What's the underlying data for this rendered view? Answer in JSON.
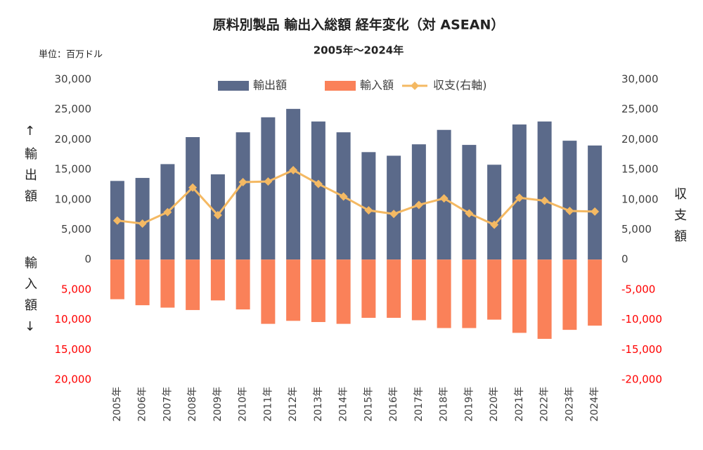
{
  "chart_data": {
    "type": "bar_line",
    "title": "原料別製品 輸出入総額 経年変化（対 ASEAN）",
    "subtitle": "2005年～2024年",
    "unit_label": "単位：百万ドル",
    "y_label_top": "↑輸出額",
    "y_label_bottom": "輸入額↓",
    "y2_label": "収支額",
    "categories": [
      "2005年",
      "2006年",
      "2007年",
      "2008年",
      "2009年",
      "2010年",
      "2011年",
      "2012年",
      "2013年",
      "2014年",
      "2015年",
      "2016年",
      "2017年",
      "2018年",
      "2019年",
      "2020年",
      "2021年",
      "2022年",
      "2023年",
      "2024年"
    ],
    "series": [
      {
        "name": "輸出額",
        "color": "#5b6a8a",
        "values": [
          13100,
          13600,
          15900,
          20400,
          14200,
          21200,
          23700,
          25100,
          23000,
          21200,
          17900,
          17300,
          19200,
          21600,
          19100,
          15800,
          22500,
          23000,
          19800,
          19000
        ]
      },
      {
        "name": "輸入額",
        "color": "#fa8159",
        "values": [
          -6600,
          -7600,
          -8000,
          -8400,
          -6800,
          -8300,
          -10700,
          -10200,
          -10400,
          -10700,
          -9700,
          -9700,
          -10100,
          -11400,
          -11400,
          -10000,
          -12200,
          -13200,
          -11700,
          -11000
        ]
      },
      {
        "name": "収支(右軸)",
        "color": "#f4b963",
        "axis": "y2",
        "values": [
          6500,
          6000,
          7900,
          12000,
          7400,
          12900,
          13000,
          14900,
          12600,
          10500,
          8200,
          7600,
          9100,
          10200,
          7700,
          5800,
          10300,
          9800,
          8100,
          8000
        ]
      }
    ],
    "ylim": [
      -20000,
      30000
    ],
    "yticks": [
      {
        "value": 30000,
        "label": "30,000"
      },
      {
        "value": 25000,
        "label": "25,000"
      },
      {
        "value": 20000,
        "label": "20,000"
      },
      {
        "value": 15000,
        "label": "15,000"
      },
      {
        "value": 10000,
        "label": "10,000"
      },
      {
        "value": 5000,
        "label": "5,000"
      },
      0,
      {
        "value": -5000,
        "label": "5,000"
      },
      {
        "value": -10000,
        "label": "10,000"
      },
      {
        "value": -15000,
        "label": "15,000"
      },
      {
        "value": -20000,
        "label": "20,000"
      }
    ],
    "y2lim": [
      -20000,
      30000
    ],
    "y2ticks": [
      {
        "value": 30000,
        "label": "30,000"
      },
      {
        "value": 25000,
        "label": "25,000"
      },
      {
        "value": 20000,
        "label": "20,000"
      },
      {
        "value": 15000,
        "label": "15,000"
      },
      {
        "value": 10000,
        "label": "10,000"
      },
      {
        "value": 5000,
        "label": "5,000"
      },
      0,
      {
        "value": -5000,
        "label": "-5,000"
      },
      {
        "value": -10000,
        "label": "-10,000"
      },
      {
        "value": -15000,
        "label": "-15,000"
      },
      {
        "value": -20000,
        "label": "-20,000"
      }
    ],
    "negative_tick_color": "#ff0000",
    "legend": "top"
  }
}
